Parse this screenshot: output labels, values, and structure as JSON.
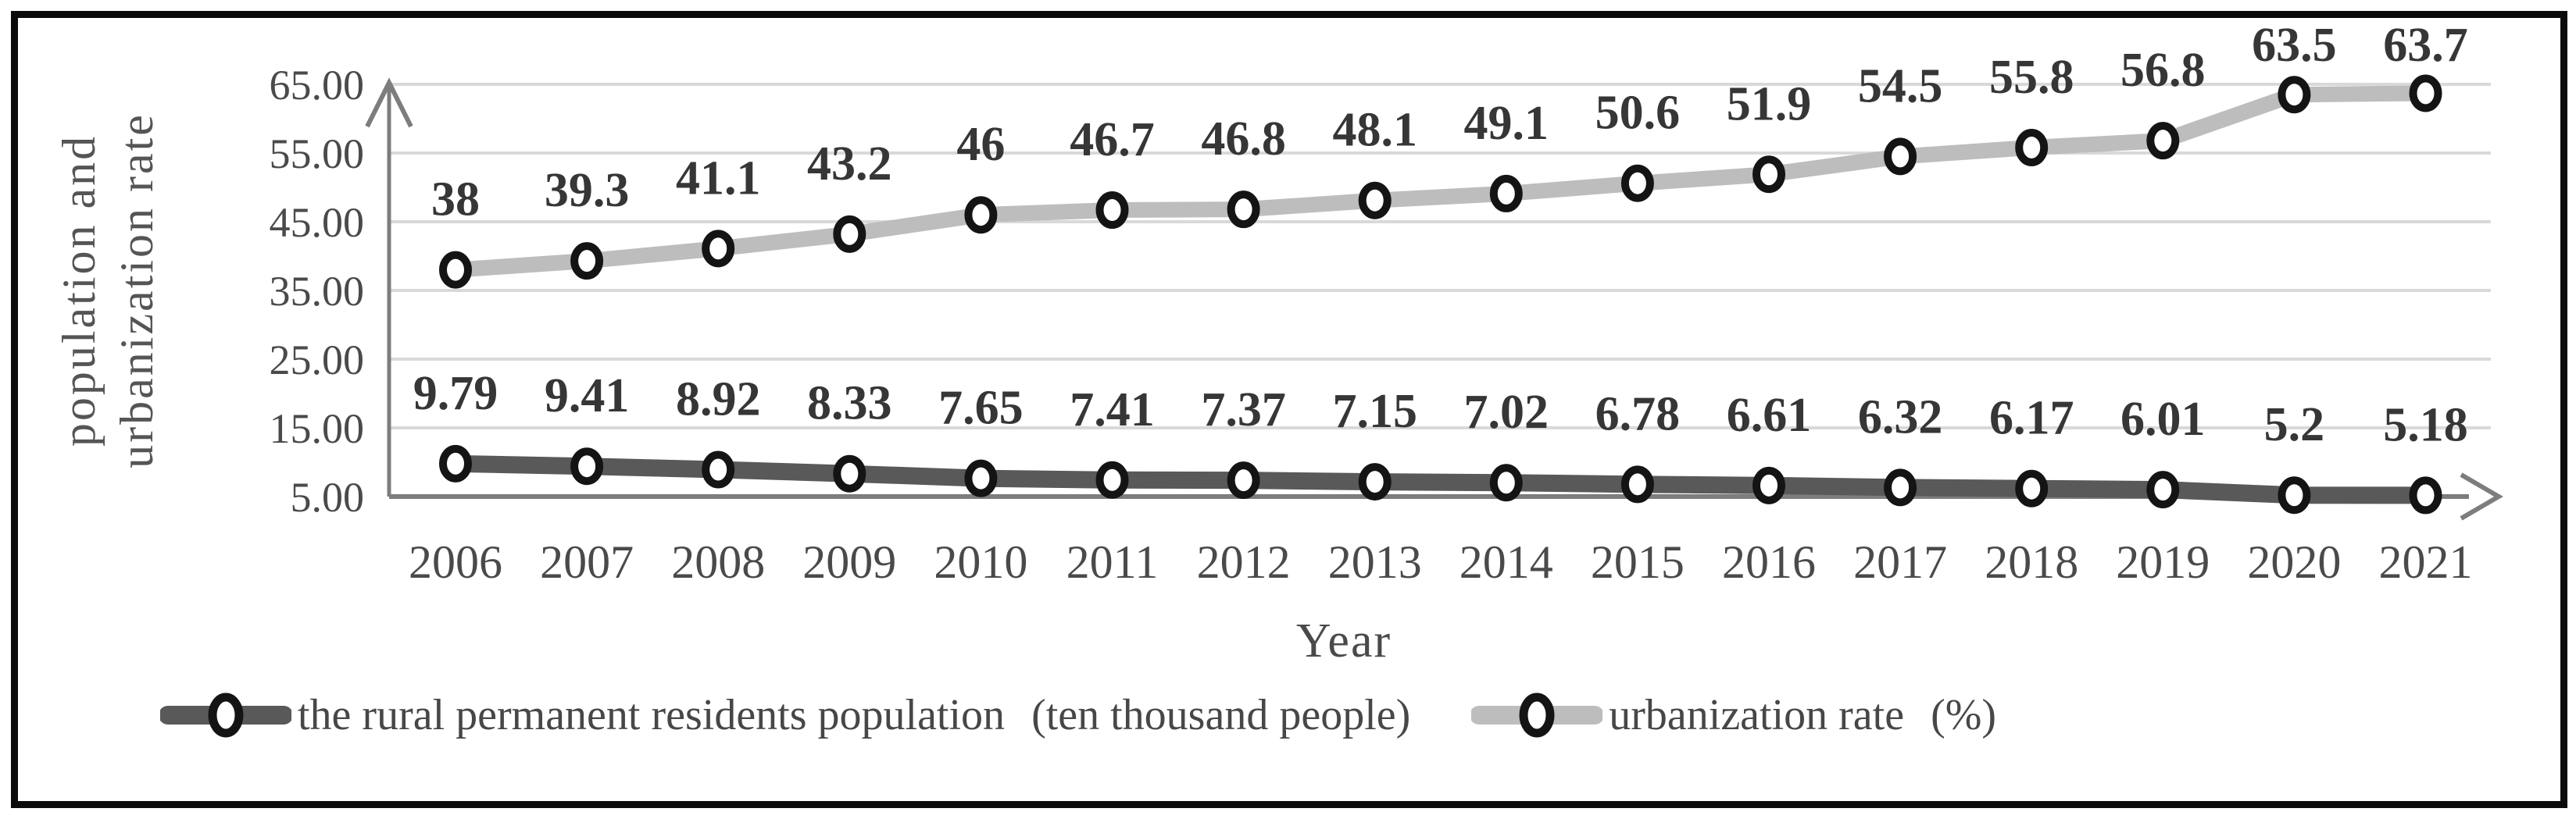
{
  "chart_data": {
    "type": "line",
    "title": "",
    "xlabel": "Year",
    "ylabel_line1": "population and",
    "ylabel_line2": "urbanization rate",
    "x_categories": [
      "2006",
      "2007",
      "2008",
      "2009",
      "2010",
      "2011",
      "2012",
      "2013",
      "2014",
      "2015",
      "2016",
      "2017",
      "2018",
      "2019",
      "2020",
      "2021"
    ],
    "y_ticks": [
      "65.00",
      "55.00",
      "45.00",
      "35.00",
      "25.00",
      "15.00",
      "5.00"
    ],
    "ylim": [
      5,
      65
    ],
    "y_tick_step": 10,
    "grid": "horizontal",
    "legend_position": "bottom",
    "series": [
      {
        "name": "the rural permanent residents population",
        "unit": "(ten thousand people)",
        "color": "#595959",
        "line_width": 22,
        "values": [
          9.79,
          9.41,
          8.92,
          8.33,
          7.65,
          7.41,
          7.37,
          7.15,
          7.02,
          6.78,
          6.61,
          6.32,
          6.17,
          6.01,
          5.2,
          5.18
        ]
      },
      {
        "name": "urbanization rate",
        "unit": "(%)",
        "color": "#bdbdbd",
        "line_width": 20,
        "values": [
          38,
          39.3,
          41.1,
          43.2,
          46,
          46.7,
          46.8,
          48.1,
          49.1,
          50.6,
          51.9,
          54.5,
          55.8,
          56.8,
          63.5,
          63.7
        ]
      }
    ]
  },
  "style": {
    "grid_color": "#d9d9d9",
    "axis_color": "#7d7d7d",
    "marker_ring_color": "#141414",
    "marker_fill": "#ffffff",
    "data_label_color": "#363636",
    "tick_label_color": "#4a4a4a",
    "frame_color": "#0b0b0b"
  },
  "legend": {
    "items": [
      {
        "label": "the rural permanent residents population",
        "unit": "(ten thousand people)",
        "marker": "circle-marker",
        "color": "#595959"
      },
      {
        "label": "urbanization rate",
        "unit": "(%)",
        "marker": "circle-marker",
        "color": "#bdbdbd"
      }
    ]
  },
  "axes": {
    "xlabel": "Year",
    "ylabel_line1": "population and",
    "ylabel_line2": "urbanization rate"
  }
}
